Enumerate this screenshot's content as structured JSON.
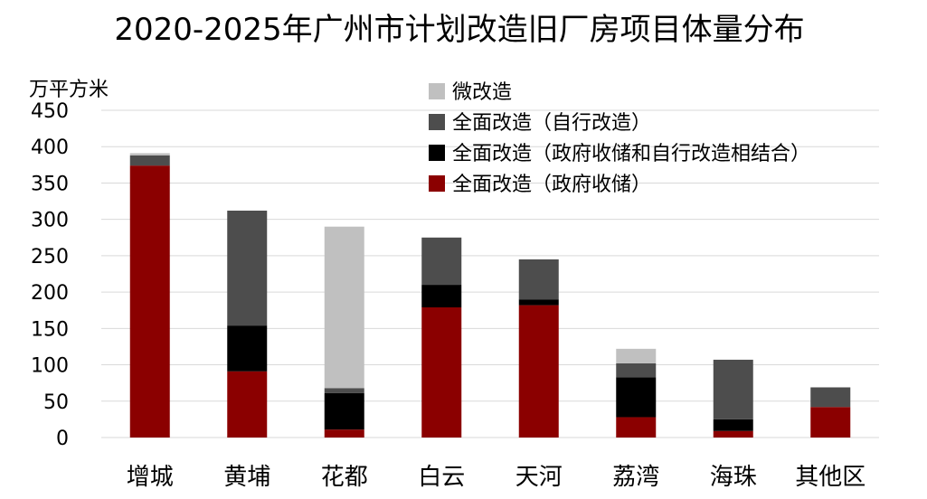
{
  "chart_data": {
    "type": "bar",
    "stacked": true,
    "title": "2020-2025年广州市计划改造旧厂房项目体量分布",
    "ylabel": "万平方米",
    "xlabel": "",
    "ylim": [
      0,
      450
    ],
    "yticks": [
      0,
      50,
      100,
      150,
      200,
      250,
      300,
      350,
      400,
      450
    ],
    "grid": true,
    "legend_position": "top-right",
    "categories": [
      "增城",
      "黄埔",
      "花都",
      "白云",
      "天河",
      "荔湾",
      "海珠",
      "其他区"
    ],
    "series": [
      {
        "name": "全面改造（政府收储）",
        "color": "#8b0000",
        "values": [
          374,
          91,
          11,
          179,
          182,
          28,
          9,
          42
        ]
      },
      {
        "name": "全面改造（政府收储和自行改造相结合）",
        "color": "#000000",
        "values": [
          0,
          63,
          50,
          31,
          8,
          55,
          16,
          0
        ]
      },
      {
        "name": "全面改造（自行改造）",
        "color": "#4d4d4d",
        "values": [
          14,
          158,
          7,
          65,
          55,
          19,
          82,
          27
        ]
      },
      {
        "name": "微改造",
        "color": "#c0c0c0",
        "values": [
          3,
          0,
          222,
          0,
          0,
          20,
          0,
          0
        ]
      }
    ]
  }
}
